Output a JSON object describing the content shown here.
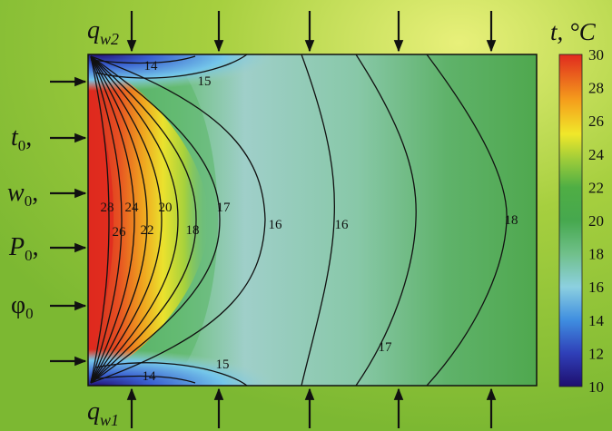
{
  "flux_labels": {
    "top": {
      "base": "q",
      "sub": "w2"
    },
    "bottom": {
      "base": "q",
      "sub": "w1"
    }
  },
  "inlet_labels": [
    {
      "base": "t",
      "sub": "0",
      "suffix": ","
    },
    {
      "base": "w",
      "sub": "0",
      "suffix": ","
    },
    {
      "base": "P",
      "sub": "0",
      "suffix": ","
    },
    {
      "base": "φ",
      "sub": "0",
      "suffix": ""
    }
  ],
  "colorbar": {
    "title": "t, °C",
    "ticks": [
      "30",
      "28",
      "26",
      "24",
      "22",
      "20",
      "18",
      "16",
      "14",
      "12",
      "10"
    ],
    "min": 10,
    "max": 30,
    "colors": [
      "#1e0f6e",
      "#3a5fd0",
      "#6fc4e8",
      "#94d3c6",
      "#6dbf7a",
      "#3fa04a",
      "#8cc63f",
      "#f2ea2a",
      "#f7a21b",
      "#e8311d"
    ]
  },
  "contour_labels": [
    "14",
    "15",
    "28",
    "24",
    "20",
    "17",
    "26",
    "22",
    "18",
    "16",
    "16",
    "18",
    "17",
    "15",
    "14"
  ],
  "colors": {
    "background": "#9bc93a",
    "field_base": "#9fcfc9",
    "hot_wall": "#e02a1e",
    "cold_corner": "#2a2a9a"
  }
}
